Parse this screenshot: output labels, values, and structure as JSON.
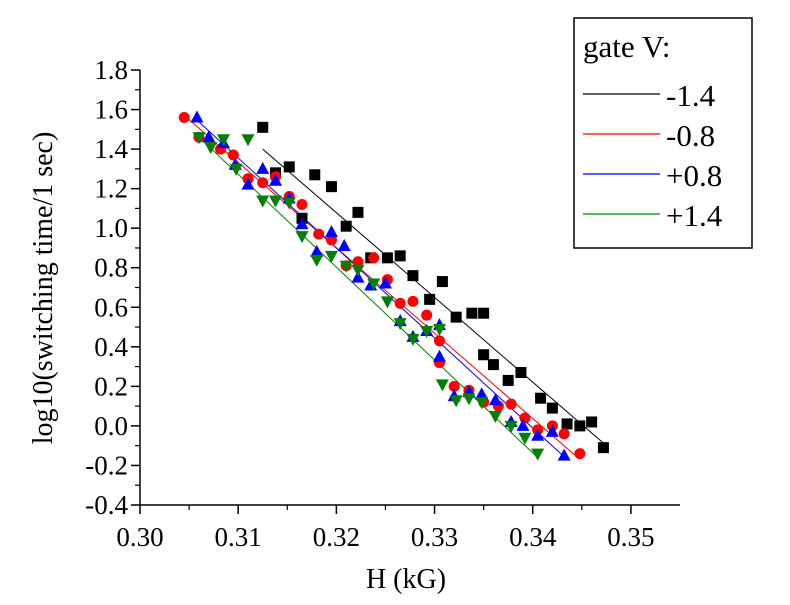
{
  "chart_data": {
    "type": "scatter",
    "title": "",
    "xlabel": "H (kG)",
    "ylabel": "log10(switching time/1 sec)",
    "xlim": [
      0.3,
      0.355
    ],
    "ylim": [
      -0.4,
      1.8
    ],
    "xticks": [
      "0.30",
      "0.31",
      "0.32",
      "0.33",
      "0.34",
      "0.35"
    ],
    "yticks": [
      "-0.4",
      "-0.2",
      "0.0",
      "0.2",
      "0.4",
      "0.6",
      "0.8",
      "1.0",
      "1.2",
      "1.4",
      "1.6",
      "1.8"
    ],
    "grid": false,
    "legend": {
      "title": "gate V:",
      "position": "top-right"
    },
    "series": [
      {
        "name": "-1.4",
        "color": "#000000",
        "marker": "square",
        "fit": [
          [
            0.3125,
            1.4
          ],
          [
            0.3475,
            -0.1
          ]
        ],
        "points": [
          [
            0.3125,
            1.51
          ],
          [
            0.3138,
            1.28
          ],
          [
            0.3152,
            1.31
          ],
          [
            0.3165,
            1.05
          ],
          [
            0.3178,
            1.27
          ],
          [
            0.3195,
            1.21
          ],
          [
            0.321,
            1.01
          ],
          [
            0.3222,
            1.08
          ],
          [
            0.3235,
            0.85
          ],
          [
            0.3252,
            0.85
          ],
          [
            0.3265,
            0.86
          ],
          [
            0.3278,
            0.76
          ],
          [
            0.3295,
            0.64
          ],
          [
            0.3308,
            0.73
          ],
          [
            0.3322,
            0.55
          ],
          [
            0.3338,
            0.57
          ],
          [
            0.335,
            0.57
          ],
          [
            0.335,
            0.36
          ],
          [
            0.336,
            0.31
          ],
          [
            0.3375,
            0.23
          ],
          [
            0.3388,
            0.27
          ],
          [
            0.3408,
            0.14
          ],
          [
            0.342,
            0.09
          ],
          [
            0.3435,
            0.01
          ],
          [
            0.3448,
            0.0
          ],
          [
            0.346,
            0.02
          ],
          [
            0.3472,
            -0.11
          ]
        ]
      },
      {
        "name": "-0.8",
        "color": "#ff0000",
        "marker": "circle",
        "fit": [
          [
            0.3045,
            1.57
          ],
          [
            0.3448,
            -0.17
          ]
        ],
        "points": [
          [
            0.3045,
            1.56
          ],
          [
            0.306,
            1.46
          ],
          [
            0.3082,
            1.4
          ],
          [
            0.3095,
            1.37
          ],
          [
            0.311,
            1.25
          ],
          [
            0.3125,
            1.23
          ],
          [
            0.3138,
            1.26
          ],
          [
            0.3152,
            1.16
          ],
          [
            0.3165,
            1.12
          ],
          [
            0.3182,
            0.97
          ],
          [
            0.3195,
            0.94
          ],
          [
            0.321,
            0.81
          ],
          [
            0.3222,
            0.83
          ],
          [
            0.3238,
            0.85
          ],
          [
            0.3252,
            0.74
          ],
          [
            0.3265,
            0.62
          ],
          [
            0.3278,
            0.63
          ],
          [
            0.3292,
            0.56
          ],
          [
            0.3305,
            0.43
          ],
          [
            0.3305,
            0.32
          ],
          [
            0.332,
            0.2
          ],
          [
            0.3335,
            0.18
          ],
          [
            0.335,
            0.12
          ],
          [
            0.3365,
            0.1
          ],
          [
            0.3378,
            0.11
          ],
          [
            0.3392,
            0.04
          ],
          [
            0.3405,
            -0.02
          ],
          [
            0.342,
            0.0
          ],
          [
            0.3432,
            -0.04
          ],
          [
            0.3448,
            -0.14
          ]
        ]
      },
      {
        "name": "+0.8",
        "color": "#0000ff",
        "marker": "triangle-up",
        "fit": [
          [
            0.3055,
            1.56
          ],
          [
            0.3435,
            -0.17
          ]
        ],
        "points": [
          [
            0.3058,
            1.56
          ],
          [
            0.307,
            1.46
          ],
          [
            0.3085,
            1.43
          ],
          [
            0.3097,
            1.32
          ],
          [
            0.311,
            1.22
          ],
          [
            0.3125,
            1.3
          ],
          [
            0.3138,
            1.24
          ],
          [
            0.3152,
            1.15
          ],
          [
            0.3165,
            1.02
          ],
          [
            0.318,
            0.88
          ],
          [
            0.3195,
            0.98
          ],
          [
            0.3208,
            0.91
          ],
          [
            0.3222,
            0.75
          ],
          [
            0.3235,
            0.71
          ],
          [
            0.325,
            0.72
          ],
          [
            0.3265,
            0.53
          ],
          [
            0.3278,
            0.45
          ],
          [
            0.3292,
            0.48
          ],
          [
            0.3305,
            0.51
          ],
          [
            0.3305,
            0.35
          ],
          [
            0.332,
            0.15
          ],
          [
            0.3335,
            0.17
          ],
          [
            0.3348,
            0.16
          ],
          [
            0.3362,
            0.13
          ],
          [
            0.3378,
            0.02
          ],
          [
            0.339,
            0.0
          ],
          [
            0.3405,
            -0.05
          ],
          [
            0.342,
            -0.03
          ],
          [
            0.3432,
            -0.15
          ]
        ]
      },
      {
        "name": "+1.4",
        "color": "#008000",
        "marker": "triangle-down",
        "fit": [
          [
            0.3058,
            1.47
          ],
          [
            0.3405,
            -0.16
          ]
        ],
        "points": [
          [
            0.306,
            1.46
          ],
          [
            0.3072,
            1.41
          ],
          [
            0.3085,
            1.45
          ],
          [
            0.3098,
            1.3
          ],
          [
            0.311,
            1.45
          ],
          [
            0.3125,
            1.14
          ],
          [
            0.3138,
            1.14
          ],
          [
            0.3152,
            1.13
          ],
          [
            0.3165,
            0.96
          ],
          [
            0.318,
            0.84
          ],
          [
            0.3195,
            0.86
          ],
          [
            0.321,
            0.81
          ],
          [
            0.3222,
            0.79
          ],
          [
            0.3238,
            0.72
          ],
          [
            0.3252,
            0.63
          ],
          [
            0.3265,
            0.52
          ],
          [
            0.3278,
            0.44
          ],
          [
            0.3292,
            0.48
          ],
          [
            0.3305,
            0.49
          ],
          [
            0.3308,
            0.21
          ],
          [
            0.3322,
            0.13
          ],
          [
            0.3335,
            0.14
          ],
          [
            0.3348,
            0.12
          ],
          [
            0.3362,
            0.05
          ],
          [
            0.3378,
            0.0
          ],
          [
            0.3392,
            -0.06
          ],
          [
            0.3405,
            -0.14
          ]
        ]
      }
    ]
  }
}
